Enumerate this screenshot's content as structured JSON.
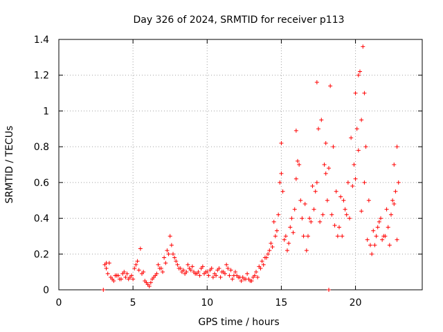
{
  "chart_data": {
    "type": "scatter",
    "title": "Day 326 of 2024, SRMTID for receiver p113",
    "xlabel": "GPS time / hours",
    "ylabel": "SRMTID / TECUs",
    "xlim": [
      0,
      24.5
    ],
    "ylim": [
      0,
      1.4
    ],
    "xticks": [
      0,
      5,
      10,
      15,
      20
    ],
    "xtick_labels": [
      "0",
      "5",
      "10",
      "15",
      "20"
    ],
    "yticks": [
      0,
      0.2,
      0.4,
      0.6,
      0.8,
      1,
      1.2,
      1.4
    ],
    "ytick_labels": [
      "0",
      "0.2",
      "0.4",
      "0.6",
      "0.8",
      "1",
      "1.2",
      "1.4"
    ],
    "grid": true,
    "marker": "plus",
    "series": [
      {
        "name": "SRMTID",
        "color": "#ff0000",
        "x": [
          3.0,
          3.1,
          3.2,
          3.3,
          3.5,
          3.7,
          3.9,
          4.1,
          4.3,
          4.5,
          4.7,
          4.9,
          5.1,
          5.3,
          5.5,
          5.7,
          5.9,
          6.1,
          6.3,
          6.5,
          6.7,
          6.9,
          7.1,
          7.3,
          7.5,
          7.7,
          7.9,
          8.1,
          8.3,
          8.5,
          8.7,
          8.9,
          9.1,
          9.3,
          9.5,
          9.7,
          9.9,
          10.1,
          10.3,
          10.5,
          10.7,
          10.9,
          11.1,
          11.3,
          11.5,
          11.7,
          11.9,
          12.1,
          12.3,
          12.5,
          12.7,
          12.9,
          13.1,
          13.3,
          13.5,
          13.7,
          13.9,
          14.1,
          14.3,
          14.5,
          14.7,
          14.9,
          15.0,
          15.1,
          15.3,
          15.5,
          15.7,
          15.9,
          16.0,
          16.1,
          16.3,
          16.5,
          16.7,
          16.9,
          17.1,
          17.3,
          17.4,
          17.5,
          17.7,
          17.9,
          18.0,
          18.1,
          18.2,
          18.3,
          18.5,
          18.7,
          18.9,
          19.1,
          19.3,
          19.5,
          19.7,
          19.9,
          20.0,
          20.1,
          20.2,
          20.3,
          20.4,
          20.5,
          20.6,
          20.7,
          20.9,
          21.1,
          21.3,
          21.5,
          21.7,
          21.9,
          22.1,
          22.3,
          22.5,
          22.6,
          22.7,
          22.8,
          3.2,
          3.6,
          4.0,
          4.4,
          4.8,
          5.2,
          5.6,
          6.0,
          6.4,
          6.8,
          7.2,
          7.6,
          8.0,
          8.4,
          8.8,
          9.2,
          9.6,
          10.0,
          10.4,
          10.8,
          11.2,
          11.6,
          12.0,
          12.4,
          12.8,
          13.2,
          13.6,
          14.0,
          14.4,
          14.8,
          15.2,
          15.6,
          16.0,
          16.4,
          16.8,
          17.2,
          17.6,
          18.0,
          18.4,
          18.8,
          19.2,
          19.6,
          20.0,
          20.4,
          20.8,
          21.2,
          21.6,
          22.0,
          22.4,
          22.8,
          3.4,
          3.8,
          4.2,
          4.6,
          5.0,
          5.4,
          5.8,
          6.2,
          6.6,
          7.0,
          7.4,
          7.8,
          8.2,
          8.6,
          9.0,
          9.4,
          9.8,
          10.2,
          10.6,
          11.0,
          11.4,
          11.8,
          12.2,
          12.6,
          13.0,
          13.4,
          13.8,
          14.2,
          14.6,
          15.0,
          15.4,
          15.8,
          16.2,
          16.6,
          17.0,
          17.4,
          17.8,
          18.2,
          18.6,
          19.0,
          19.4,
          19.8,
          20.2,
          20.6,
          21.0,
          21.4,
          21.8,
          22.2,
          22.6,
          22.9
        ],
        "y": [
          0.0,
          0.14,
          0.15,
          0.09,
          0.07,
          0.05,
          0.08,
          0.06,
          0.09,
          0.07,
          0.06,
          0.08,
          0.12,
          0.16,
          0.23,
          0.1,
          0.04,
          0.02,
          0.06,
          0.08,
          0.14,
          0.12,
          0.18,
          0.22,
          0.3,
          0.2,
          0.16,
          0.12,
          0.1,
          0.09,
          0.14,
          0.11,
          0.1,
          0.09,
          0.08,
          0.13,
          0.1,
          0.08,
          0.12,
          0.09,
          0.11,
          0.07,
          0.1,
          0.14,
          0.08,
          0.06,
          0.1,
          0.07,
          0.05,
          0.06,
          0.09,
          0.05,
          0.07,
          0.1,
          0.13,
          0.16,
          0.18,
          0.2,
          0.26,
          0.38,
          0.33,
          0.6,
          0.82,
          0.55,
          0.3,
          0.26,
          0.4,
          0.45,
          0.89,
          0.72,
          0.5,
          0.3,
          0.22,
          0.4,
          0.58,
          0.55,
          1.16,
          0.9,
          0.95,
          0.7,
          0.82,
          0.5,
          0.0,
          1.14,
          0.8,
          0.55,
          0.35,
          0.3,
          0.45,
          0.6,
          0.85,
          0.7,
          1.1,
          0.9,
          1.2,
          1.22,
          0.95,
          1.36,
          1.1,
          0.8,
          0.5,
          0.2,
          0.25,
          0.35,
          0.4,
          0.3,
          0.45,
          0.25,
          0.5,
          0.7,
          0.55,
          0.8,
          0.12,
          0.06,
          0.08,
          0.1,
          0.07,
          0.14,
          0.09,
          0.03,
          0.07,
          0.12,
          0.15,
          0.25,
          0.14,
          0.11,
          0.12,
          0.09,
          0.12,
          0.1,
          0.07,
          0.12,
          0.09,
          0.11,
          0.08,
          0.07,
          0.06,
          0.08,
          0.12,
          0.18,
          0.24,
          0.42,
          0.28,
          0.35,
          0.62,
          0.4,
          0.3,
          0.45,
          0.38,
          0.65,
          0.42,
          0.3,
          0.5,
          0.4,
          0.62,
          0.44,
          0.28,
          0.33,
          0.38,
          0.3,
          0.42,
          0.28,
          0.15,
          0.08,
          0.06,
          0.09,
          0.06,
          0.11,
          0.05,
          0.04,
          0.09,
          0.1,
          0.2,
          0.18,
          0.12,
          0.1,
          0.13,
          0.1,
          0.09,
          0.11,
          0.08,
          0.1,
          0.12,
          0.08,
          0.07,
          0.06,
          0.05,
          0.07,
          0.14,
          0.22,
          0.3,
          0.65,
          0.22,
          0.32,
          0.7,
          0.48,
          0.38,
          0.6,
          0.42,
          0.68,
          0.36,
          0.52,
          0.42,
          0.58,
          0.78,
          0.6,
          0.25,
          0.3,
          0.28,
          0.35,
          0.48,
          0.6
        ]
      }
    ]
  }
}
